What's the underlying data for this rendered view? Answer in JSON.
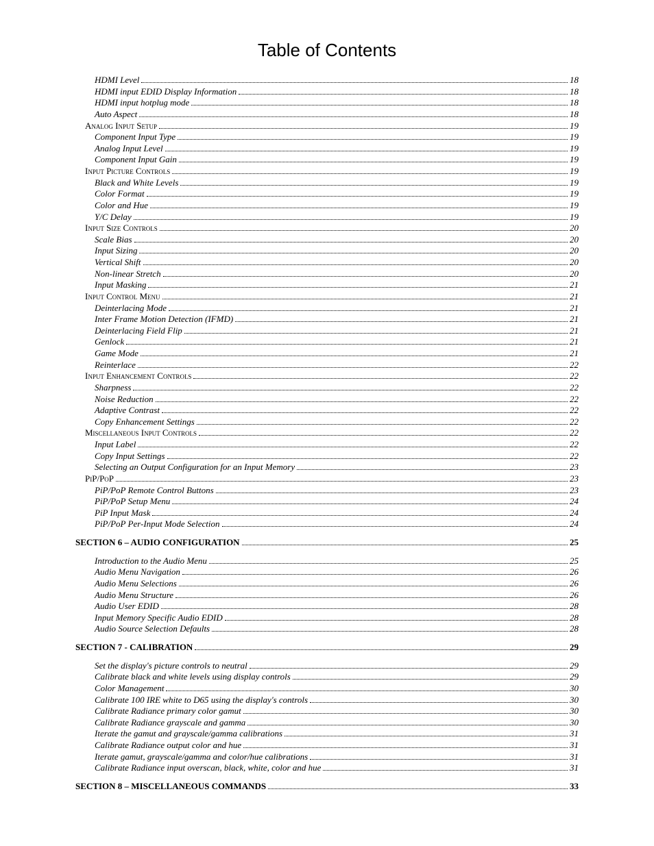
{
  "title": "Table of Contents",
  "entries": [
    {
      "level": 3,
      "label": "HDMI Level",
      "page": "18"
    },
    {
      "level": 3,
      "label": "HDMI input EDID Display Information",
      "page": "18"
    },
    {
      "level": 3,
      "label": "HDMI input hotplug mode",
      "page": "18"
    },
    {
      "level": 3,
      "label": "Auto Aspect",
      "page": "18"
    },
    {
      "level": 2,
      "label": "Analog Input Setup",
      "page": "19"
    },
    {
      "level": 3,
      "label": "Component Input Type",
      "page": "19"
    },
    {
      "level": 3,
      "label": "Analog Input Level",
      "page": "19"
    },
    {
      "level": 3,
      "label": "Component Input Gain",
      "page": "19"
    },
    {
      "level": 2,
      "label": "Input Picture Controls",
      "page": "19"
    },
    {
      "level": 3,
      "label": "Black and White Levels",
      "page": "19"
    },
    {
      "level": 3,
      "label": "Color Format",
      "page": "19"
    },
    {
      "level": 3,
      "label": "Color and Hue",
      "page": "19"
    },
    {
      "level": 3,
      "label": "Y/C Delay",
      "page": "19"
    },
    {
      "level": 2,
      "label": "Input Size Controls",
      "page": "20"
    },
    {
      "level": 3,
      "label": "Scale Bias",
      "page": "20"
    },
    {
      "level": 3,
      "label": "Input Sizing",
      "page": "20"
    },
    {
      "level": 3,
      "label": "Vertical Shift",
      "page": "20"
    },
    {
      "level": 3,
      "label": "Non-linear Stretch",
      "page": "20"
    },
    {
      "level": 3,
      "label": "Input Masking",
      "page": "21"
    },
    {
      "level": 2,
      "label": "Input Control Menu",
      "page": "21"
    },
    {
      "level": 3,
      "label": "Deinterlacing Mode",
      "page": "21"
    },
    {
      "level": 3,
      "label": "Inter Frame Motion Detection (IFMD)",
      "page": "21"
    },
    {
      "level": 3,
      "label": "Deinterlacing Field Flip",
      "page": "21"
    },
    {
      "level": 3,
      "label": "Genlock",
      "page": "21"
    },
    {
      "level": 3,
      "label": "Game Mode",
      "page": "21"
    },
    {
      "level": 3,
      "label": "Reinterlace",
      "page": "22"
    },
    {
      "level": 2,
      "label": "Input Enhancement Controls",
      "page": "22"
    },
    {
      "level": 3,
      "label": "Sharpness",
      "page": "22"
    },
    {
      "level": 3,
      "label": "Noise Reduction",
      "page": "22"
    },
    {
      "level": 3,
      "label": "Adaptive Contrast",
      "page": "22"
    },
    {
      "level": 3,
      "label": "Copy Enhancement Settings",
      "page": "22"
    },
    {
      "level": 2,
      "label": "Miscellaneous Input Controls",
      "page": "22"
    },
    {
      "level": 3,
      "label": "Input Label",
      "page": "22"
    },
    {
      "level": 3,
      "label": "Copy Input Settings",
      "page": "22"
    },
    {
      "level": 3,
      "label": "Selecting an Output Configuration for an Input Memory",
      "page": "23"
    },
    {
      "level": 2,
      "label": "PiP/PoP",
      "page": "23"
    },
    {
      "level": 3,
      "label": "PiP/PoP Remote Control Buttons",
      "page": "23"
    },
    {
      "level": 3,
      "label": "PiP/PoP Setup Menu",
      "page": "24"
    },
    {
      "level": 3,
      "label": "PiP Input Mask",
      "page": "24"
    },
    {
      "level": 3,
      "label": "PiP/PoP Per-Input Mode Selection",
      "page": "24"
    },
    {
      "gap": true
    },
    {
      "level": 1,
      "label": "SECTION 6 – AUDIO CONFIGURATION",
      "page": "25"
    },
    {
      "gap": true
    },
    {
      "level": 3,
      "label": "Introduction to the Audio Menu",
      "page": "25"
    },
    {
      "level": 3,
      "label": "Audio Menu Navigation",
      "page": "26"
    },
    {
      "level": 3,
      "label": "Audio Menu Selections",
      "page": "26"
    },
    {
      "level": 3,
      "label": "Audio Menu Structure",
      "page": "26"
    },
    {
      "level": 3,
      "label": "Audio User EDID",
      "page": "28"
    },
    {
      "level": 3,
      "label": "Input Memory Specific Audio EDID",
      "page": "28"
    },
    {
      "level": 3,
      "label": "Audio Source Selection Defaults",
      "page": "28"
    },
    {
      "gap": true
    },
    {
      "level": 1,
      "label": "SECTION 7 - CALIBRATION",
      "page": "29"
    },
    {
      "gap": true
    },
    {
      "level": 3,
      "label": "Set the display's picture controls to neutral",
      "page": "29"
    },
    {
      "level": 3,
      "label": "Calibrate black and white levels using display controls",
      "page": "29"
    },
    {
      "level": 3,
      "label": "Color Management",
      "page": "30"
    },
    {
      "level": 3,
      "label": "Calibrate 100 IRE white to D65 using the display's controls",
      "page": "30"
    },
    {
      "level": 3,
      "label": "Calibrate Radiance primary color gamut",
      "page": "30"
    },
    {
      "level": 3,
      "label": "Calibrate Radiance grayscale and gamma",
      "page": "30"
    },
    {
      "level": 3,
      "label": "Iterate the gamut and grayscale/gamma calibrations",
      "page": "31"
    },
    {
      "level": 3,
      "label": "Calibrate Radiance output color and hue",
      "page": "31"
    },
    {
      "level": 3,
      "label": "Iterate gamut, grayscale/gamma and color/hue calibrations",
      "page": "31"
    },
    {
      "level": 3,
      "label": "Calibrate Radiance input overscan, black, white, color and hue",
      "page": "31"
    },
    {
      "gap": true
    },
    {
      "level": 1,
      "label": "SECTION 8 – MISCELLANEOUS COMMANDS",
      "page": "33"
    }
  ]
}
